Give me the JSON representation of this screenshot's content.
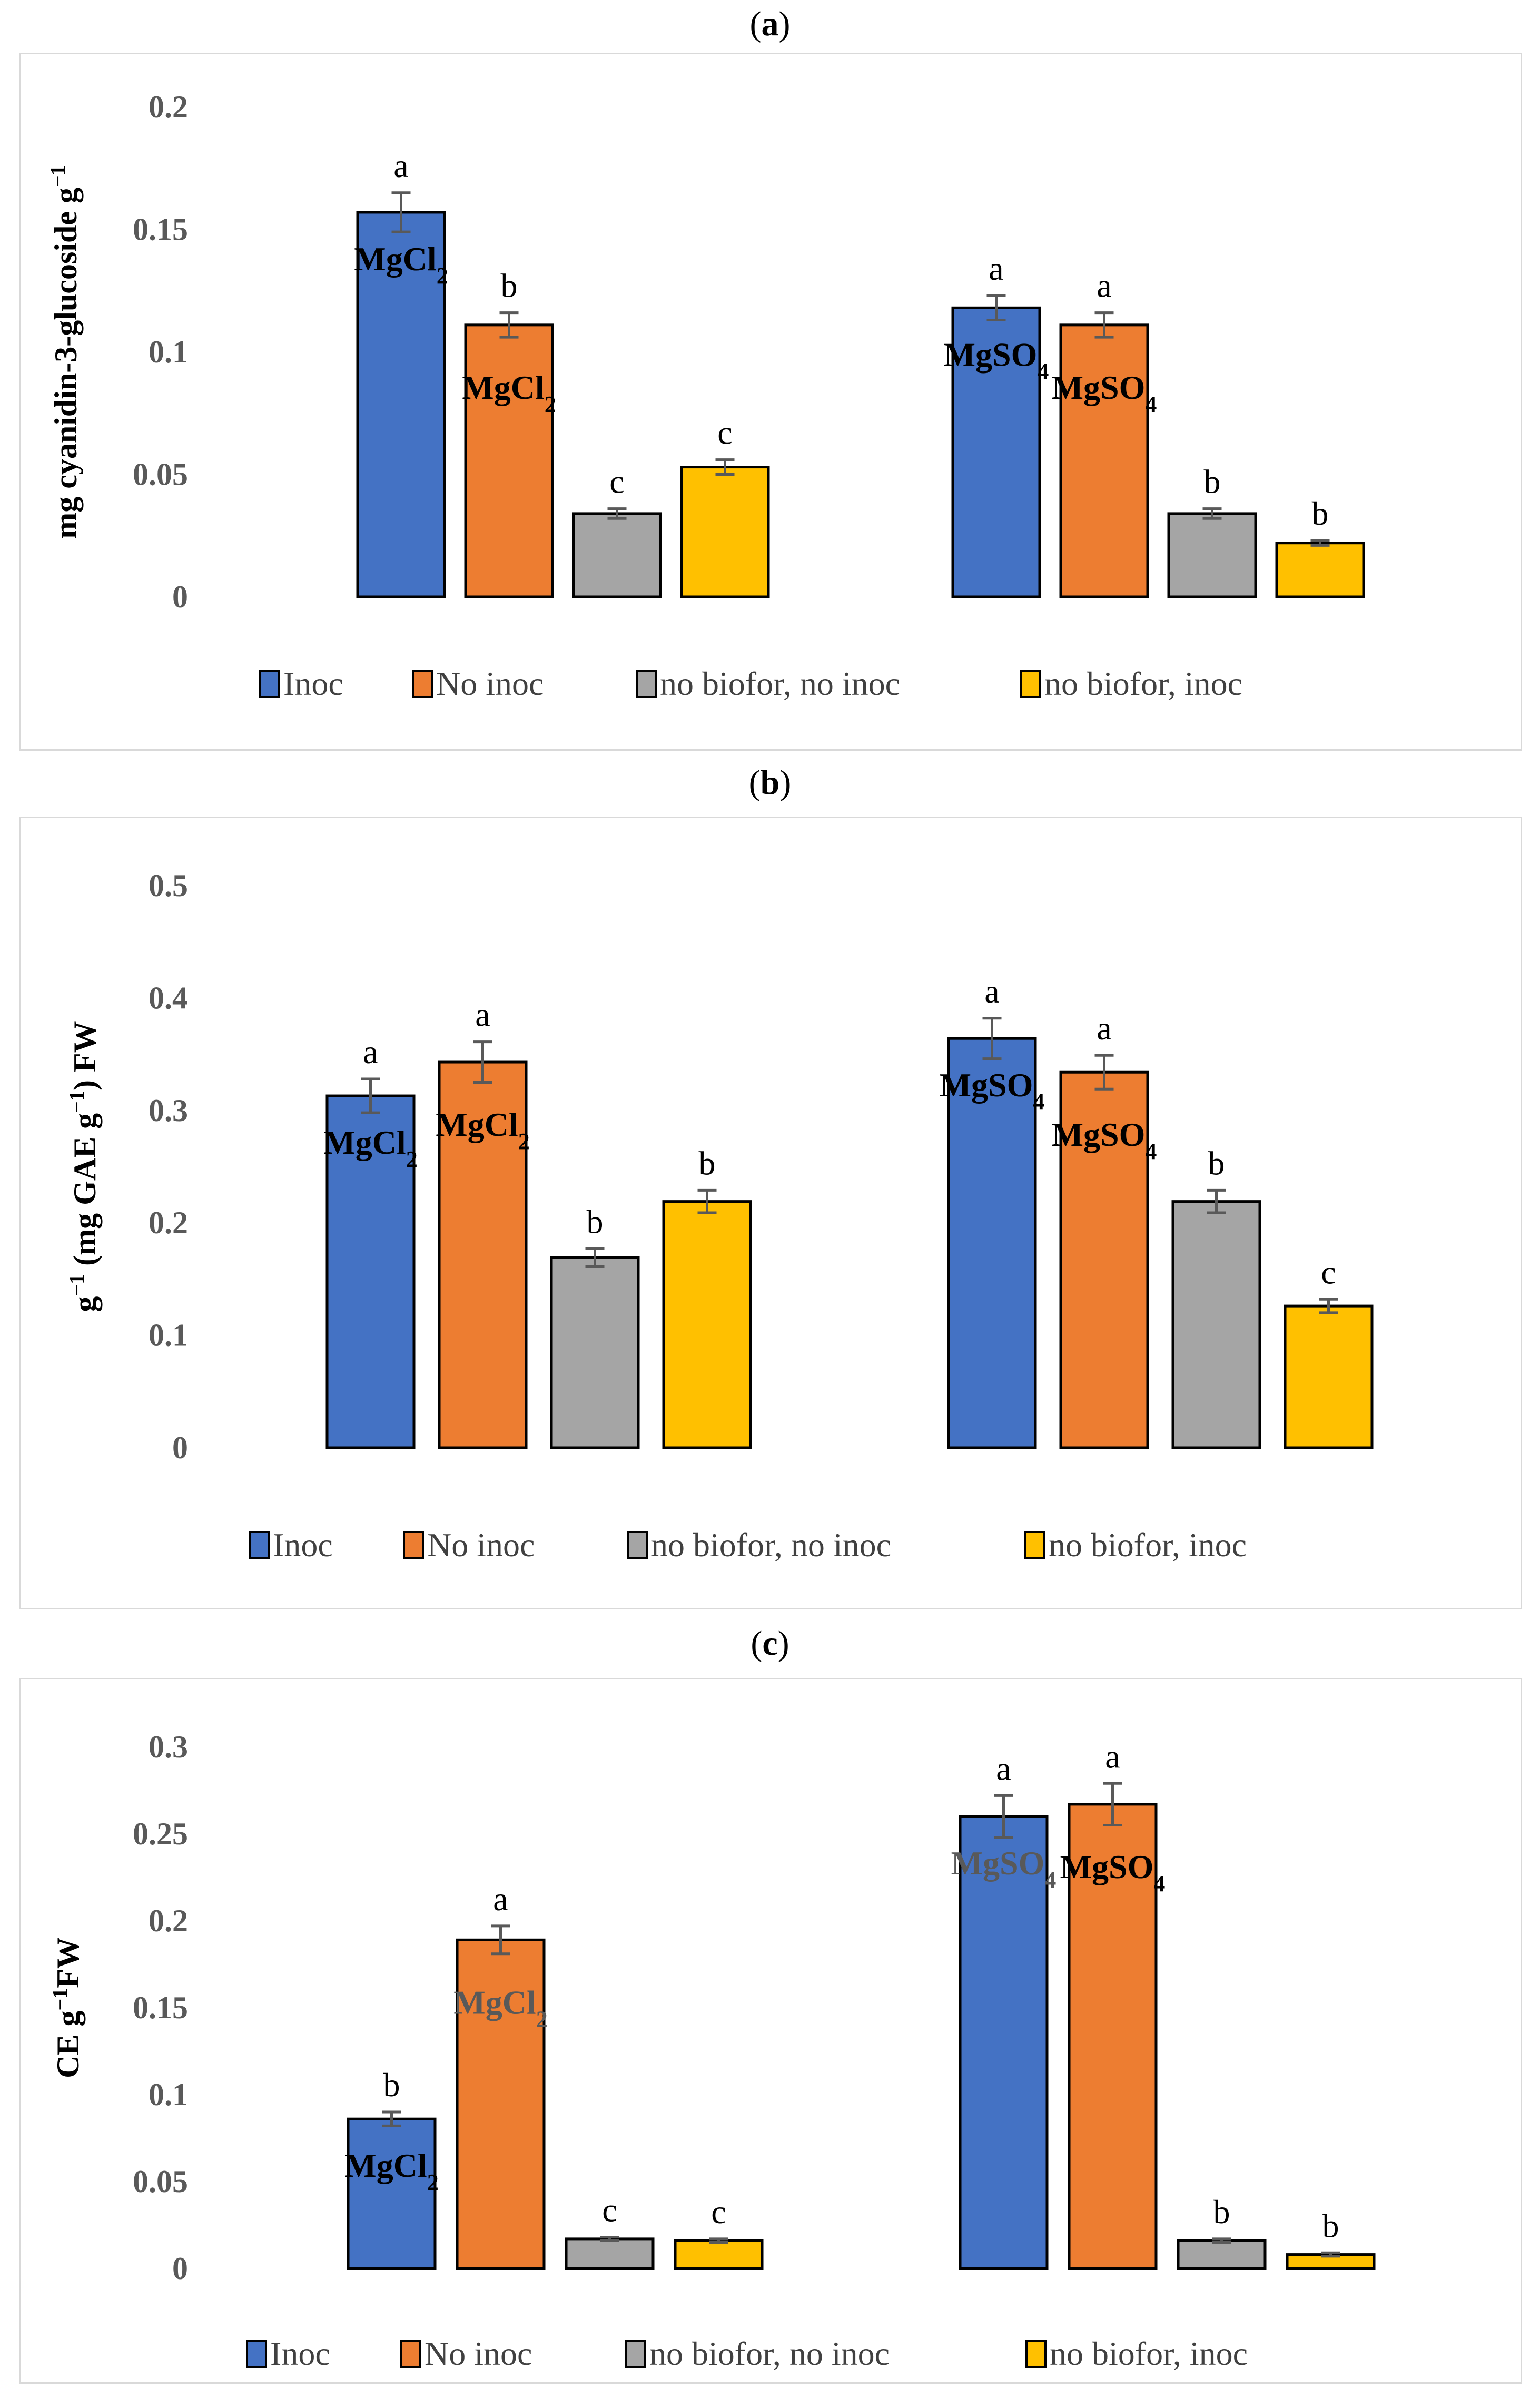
{
  "panels": {
    "a": {
      "label_open": "(",
      "label_letter": "a",
      "label_close": ")"
    },
    "b": {
      "label_open": "(",
      "label_letter": "b",
      "label_close": ")"
    },
    "c": {
      "label_open": "(",
      "label_letter": "c",
      "label_close": ")"
    }
  },
  "colors": {
    "Inoc": "#4472c4",
    "No inoc": "#ed7d31",
    "no biofor, no inoc": "#a5a5a5",
    "no biofor, inoc": "#ffc000",
    "error_bar": "#595959"
  },
  "chart_data": [
    {
      "type": "bar",
      "panel": "a",
      "ylabel": "mg cyanidin-3-glucoside g",
      "ylabel_sup": "−1",
      "ylim": [
        0,
        0.2
      ],
      "yticks": [
        "0",
        "0.05",
        "0.1",
        "0.15",
        "0.2"
      ],
      "ytick_values": [
        0,
        0.05,
        0.1,
        0.15,
        0.2
      ],
      "categories": [
        "MgCl2",
        "MgSO4"
      ],
      "legend": [
        "Inoc",
        "No inoc",
        "no biofor, no inoc",
        "no biofor, inoc"
      ],
      "legend_position": "bottom",
      "series": [
        {
          "name": "Inoc",
          "values": [
            0.157,
            0.118
          ],
          "errors": [
            0.008,
            0.005
          ],
          "letters": [
            "a",
            "a"
          ]
        },
        {
          "name": "No inoc",
          "values": [
            0.111,
            0.111
          ],
          "errors": [
            0.005,
            0.005
          ],
          "letters": [
            "b",
            "a"
          ]
        },
        {
          "name": "no biofor, no inoc",
          "values": [
            0.034,
            0.034
          ],
          "errors": [
            0.002,
            0.002
          ],
          "letters": [
            "c",
            "b"
          ]
        },
        {
          "name": "no biofor, inoc",
          "values": [
            0.053,
            0.022
          ],
          "errors": [
            0.003,
            0.001
          ],
          "letters": [
            "c",
            "b"
          ]
        }
      ],
      "salt_labels": [
        {
          "text": "MgCl",
          "sub": "2",
          "group": 0,
          "series": 0,
          "grey": false
        },
        {
          "text": "MgCl",
          "sub": "2",
          "group": 0,
          "series": 1,
          "grey": false
        },
        {
          "text": "MgSO",
          "sub": "4",
          "group": 1,
          "series": 0,
          "grey": false
        },
        {
          "text": "MgSO",
          "sub": "4",
          "group": 1,
          "series": 1,
          "grey": false
        }
      ]
    },
    {
      "type": "bar",
      "panel": "b",
      "ylabel": "g",
      "ylabel_sup": "−1",
      "ylabel_mid": " (mg GAE g",
      "ylabel_sup2": "−1",
      "ylabel_end": ") FW",
      "ylim": [
        0,
        0.5
      ],
      "yticks": [
        "0",
        "0.1",
        "0.2",
        "0.3",
        "0.4",
        "0.5"
      ],
      "ytick_values": [
        0,
        0.1,
        0.2,
        0.3,
        0.4,
        0.5
      ],
      "categories": [
        "MgCl2",
        "MgSO4"
      ],
      "legend": [
        "Inoc",
        "No inoc",
        "no biofor, no inoc",
        "no biofor, inoc"
      ],
      "legend_position": "bottom",
      "series": [
        {
          "name": "Inoc",
          "values": [
            0.313,
            0.364
          ],
          "errors": [
            0.015,
            0.018
          ],
          "letters": [
            "a",
            "a"
          ]
        },
        {
          "name": "No inoc",
          "values": [
            0.343,
            0.334
          ],
          "errors": [
            0.018,
            0.015
          ],
          "letters": [
            "a",
            "a"
          ]
        },
        {
          "name": "no biofor, no inoc",
          "values": [
            0.169,
            0.219
          ],
          "errors": [
            0.008,
            0.01
          ],
          "letters": [
            "b",
            "b"
          ]
        },
        {
          "name": "no biofor, inoc",
          "values": [
            0.219,
            0.126
          ],
          "errors": [
            0.01,
            0.006
          ],
          "letters": [
            "b",
            "c"
          ]
        }
      ],
      "salt_labels": [
        {
          "text": "MgCl",
          "sub": "2",
          "group": 0,
          "series": 0,
          "grey": false
        },
        {
          "text": "MgCl",
          "sub": "2",
          "group": 0,
          "series": 1,
          "grey": false
        },
        {
          "text": "MgSO",
          "sub": "4",
          "group": 1,
          "series": 0,
          "grey": false
        },
        {
          "text": "MgSO",
          "sub": "4",
          "group": 1,
          "series": 1,
          "grey": false
        }
      ]
    },
    {
      "type": "bar",
      "panel": "c",
      "ylabel": "CE g",
      "ylabel_sup": "−1",
      "ylabel_end": "FW",
      "ylim": [
        0,
        0.3
      ],
      "yticks": [
        "0",
        "0.05",
        "0.1",
        "0.15",
        "0.2",
        "0.25",
        "0.3"
      ],
      "ytick_values": [
        0,
        0.05,
        0.1,
        0.15,
        0.2,
        0.25,
        0.3
      ],
      "categories": [
        "MgCl2",
        "MgSO4"
      ],
      "legend": [
        "Inoc",
        "No inoc",
        "no biofor, no inoc",
        "no biofor, inoc"
      ],
      "legend_position": "bottom",
      "series": [
        {
          "name": "Inoc",
          "values": [
            0.086,
            0.26
          ],
          "errors": [
            0.004,
            0.012
          ],
          "letters": [
            "b",
            "a"
          ]
        },
        {
          "name": "No inoc",
          "values": [
            0.189,
            0.267
          ],
          "errors": [
            0.008,
            0.012
          ],
          "letters": [
            "a",
            "a"
          ]
        },
        {
          "name": "no biofor, no inoc",
          "values": [
            0.017,
            0.016
          ],
          "errors": [
            0.001,
            0.001
          ],
          "letters": [
            "c",
            "b"
          ]
        },
        {
          "name": "no biofor, inoc",
          "values": [
            0.016,
            0.008
          ],
          "errors": [
            0.001,
            0.001
          ],
          "letters": [
            "c",
            "b"
          ]
        }
      ],
      "salt_labels": [
        {
          "text": "MgCl",
          "sub": "2",
          "group": 0,
          "series": 0,
          "grey": false
        },
        {
          "text": "MgCl",
          "sub": "2",
          "group": 0,
          "series": 1,
          "grey": true
        },
        {
          "text": "MgSO",
          "sub": "4",
          "group": 1,
          "series": 0,
          "grey": true
        },
        {
          "text": "MgSO",
          "sub": "4",
          "group": 1,
          "series": 1,
          "grey": false
        }
      ]
    }
  ]
}
